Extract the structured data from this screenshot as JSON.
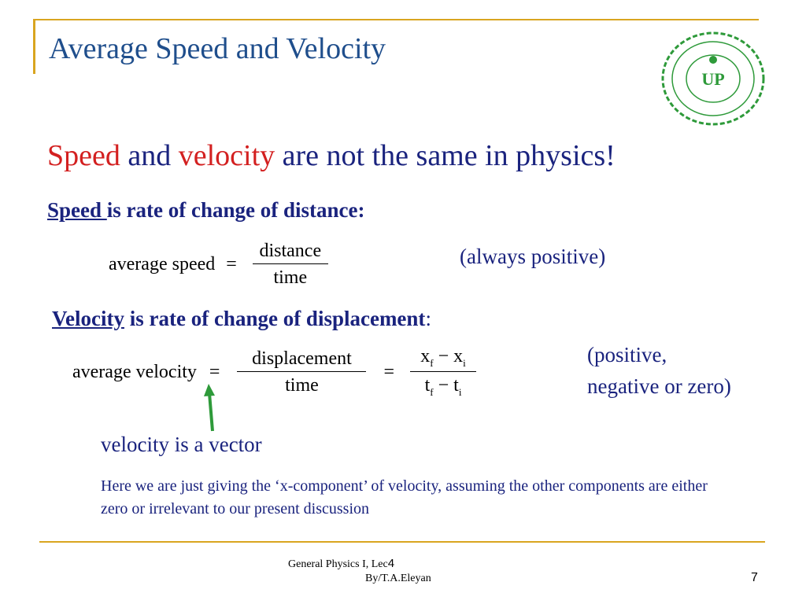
{
  "slide": {
    "title": "Average Speed and Velocity",
    "headline": {
      "part1": "Speed",
      "part2": " and ",
      "part3": "velocity",
      "part4": " are not the same in physics!"
    },
    "speed_def": {
      "term": "Speed ",
      "rest": "is rate of change of distance:"
    },
    "speed_eq": {
      "lhs": "average  speed",
      "equals": "=",
      "num": "distance",
      "den": "time"
    },
    "speed_note": "(always positive)",
    "velocity_def": {
      "term": "Velocity",
      "rest": " is rate of change of displacement",
      "colon": ":"
    },
    "velocity_eq": {
      "lhs": "average  velocity",
      "equals1": "=",
      "num": "displacement",
      "den": "time",
      "equals2": "=",
      "x": "x",
      "sub_f": "f",
      "minus": " − ",
      "sub_i": "i",
      "t": "t"
    },
    "velocity_note_line1": "(positive,",
    "velocity_note_line2": "negative or zero)",
    "vector_note": "velocity is a vector",
    "component_note": "Here we are just giving the ‘x-component’ of velocity, assuming the other components are either zero or irrelevant to our present discussion",
    "footer_line1": "General Physics I, Lec",
    "footer_lec_num": "4",
    "footer_line2": "By/T.A.Eleyan",
    "page_number": "7",
    "logo_text": "UP"
  },
  "colors": {
    "accent": "#d9a520",
    "title": "#1f4e8c",
    "text": "#1a237e",
    "highlight": "#d32020",
    "arrow": "#2e9a3a",
    "logo": "#2e9a3a"
  }
}
